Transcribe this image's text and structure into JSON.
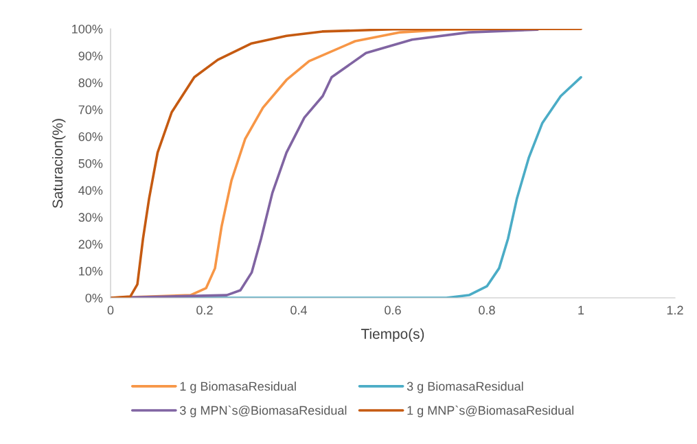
{
  "chart_data": {
    "type": "line",
    "xlabel": "Tiempo(s)",
    "ylabel": "Saturacion(%)",
    "xlim": [
      0,
      1.2
    ],
    "xticks": [
      0,
      0.2,
      0.4,
      0.6,
      0.8,
      1,
      1.2
    ],
    "ylim": [
      0,
      100
    ],
    "yticks": [
      {
        "value": 0,
        "label": "0%"
      },
      {
        "value": 10,
        "label": "10%"
      },
      {
        "value": 20,
        "label": "20%"
      },
      {
        "value": 30,
        "label": "30%"
      },
      {
        "value": 40,
        "label": "40%"
      },
      {
        "value": 50,
        "label": "50%"
      },
      {
        "value": 60,
        "label": "60%"
      },
      {
        "value": 70,
        "label": "70%"
      },
      {
        "value": 80,
        "label": "80%"
      },
      {
        "value": 90,
        "label": "90%"
      },
      {
        "value": 100,
        "label": "100%"
      }
    ],
    "grid": false,
    "legend": "bottom",
    "marker": "none",
    "line_style": "solid",
    "series": [
      {
        "name": "1 g BiomasaResidual",
        "color": "#f79646",
        "x": [
          0,
          0.17,
          0.203,
          0.222,
          0.236,
          0.257,
          0.286,
          0.324,
          0.374,
          0.422,
          0.52,
          0.616,
          0.714,
          0.85,
          1
        ],
        "values": [
          0,
          1,
          3.6,
          11,
          26.5,
          43.6,
          59,
          70.7,
          81,
          88,
          95.4,
          98.7,
          99.7,
          100,
          100
        ]
      },
      {
        "name": "3 g BiomasaResidual",
        "color": "#4bacc6",
        "x": [
          0,
          0.714,
          0.762,
          0.8,
          0.826,
          0.845,
          0.864,
          0.889,
          0.918,
          0.957,
          1
        ],
        "values": [
          0,
          0,
          1,
          4.3,
          11,
          22,
          37,
          52,
          65,
          75,
          82
        ]
      },
      {
        "name": "3 g MPN`s@BiomasaResidual",
        "color": "#8064a2",
        "x": [
          0,
          0.247,
          0.276,
          0.3,
          0.32,
          0.344,
          0.374,
          0.412,
          0.451,
          0.47,
          0.543,
          0.641,
          0.762,
          0.908
        ],
        "values": [
          0,
          1,
          2.8,
          9.4,
          22,
          39,
          54,
          67,
          75,
          82,
          91,
          96,
          98.7,
          99.7
        ]
      },
      {
        "name": "1 g MNP`s@BiomasaResidual",
        "color": "#c55a11",
        "x": [
          0,
          0.042,
          0.057,
          0.069,
          0.082,
          0.1,
          0.13,
          0.178,
          0.228,
          0.3,
          0.374,
          0.45,
          0.6,
          1
        ],
        "values": [
          0,
          0.5,
          5,
          22,
          37,
          54,
          69,
          82,
          88.5,
          94.6,
          97.4,
          99,
          99.8,
          100
        ]
      }
    ]
  }
}
